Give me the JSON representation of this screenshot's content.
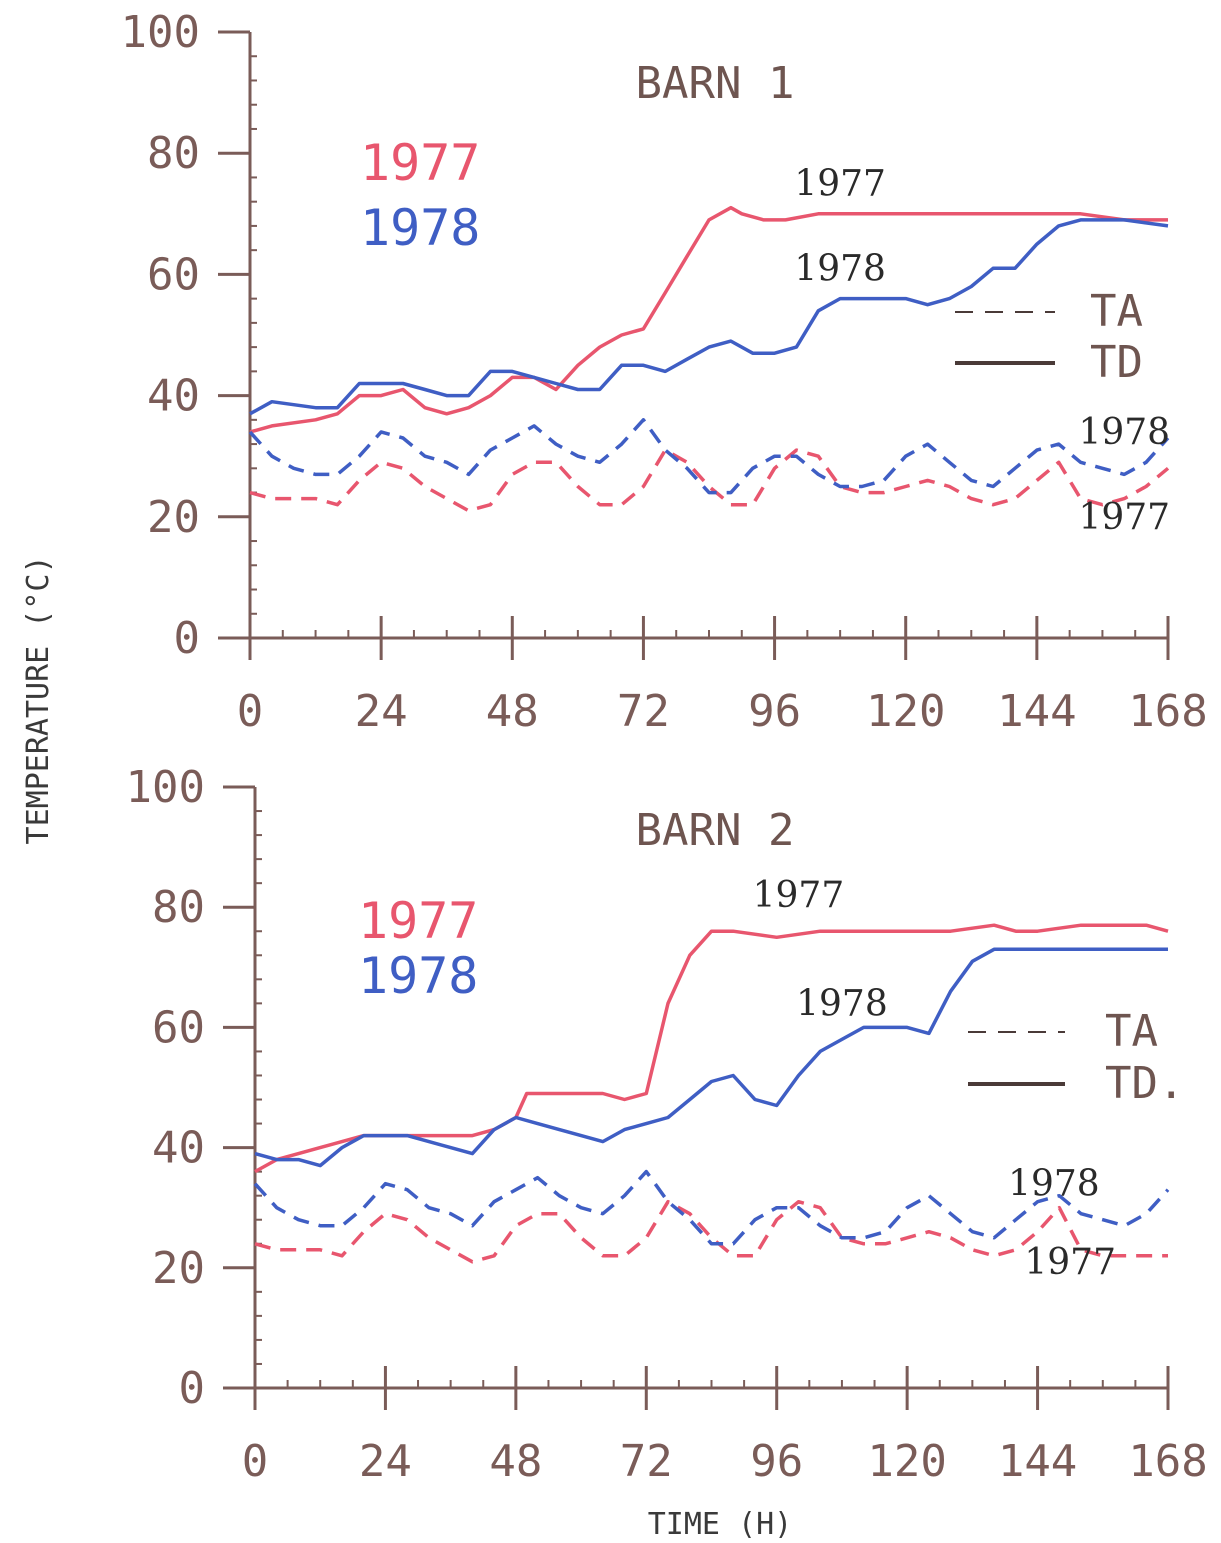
{
  "colors": {
    "axis": "#7a5c58",
    "y1977": "#e8566e",
    "y1978": "#3f5ec4",
    "text": "#6e5550"
  },
  "y_axis_label": "TEMPERATURE (°C)",
  "x_axis_label": "TIME (H)",
  "chart_data": [
    {
      "type": "line",
      "title": "BARN 1",
      "xlim": [
        0,
        168
      ],
      "ylim": [
        0,
        100
      ],
      "x_ticks": [
        0,
        24,
        48,
        72,
        96,
        120,
        144,
        168
      ],
      "y_ticks": [
        0,
        20,
        40,
        60,
        80,
        100
      ],
      "year_legend": [
        "1977",
        "1978"
      ],
      "style_legend": [
        {
          "label": "TA",
          "style": "dashed"
        },
        {
          "label": "TD",
          "style": "solid"
        }
      ],
      "annotations": [
        {
          "text": "1977",
          "x": 108,
          "y": 73
        },
        {
          "text": "1978",
          "x": 108,
          "y": 59
        },
        {
          "text": "1978",
          "x": 160,
          "y": 32
        },
        {
          "text": "1977",
          "x": 160,
          "y": 18
        }
      ],
      "series": [
        {
          "name": "TD 1977",
          "year": "1977",
          "style": "solid",
          "x": [
            0,
            4,
            12,
            16,
            20,
            24,
            28,
            32,
            36,
            40,
            44,
            48,
            52,
            56,
            60,
            64,
            68,
            72,
            76,
            80,
            84,
            88,
            90,
            94,
            98,
            104,
            112,
            120,
            128,
            136,
            144,
            152,
            160,
            168
          ],
          "y": [
            34,
            35,
            36,
            37,
            40,
            40,
            41,
            38,
            37,
            38,
            40,
            43,
            43,
            41,
            45,
            48,
            50,
            51,
            57,
            63,
            69,
            71,
            70,
            69,
            69,
            70,
            70,
            70,
            70,
            70,
            70,
            70,
            69,
            69
          ]
        },
        {
          "name": "TD 1978",
          "year": "1978",
          "style": "solid",
          "x": [
            0,
            4,
            12,
            16,
            20,
            24,
            28,
            32,
            36,
            40,
            44,
            48,
            52,
            56,
            60,
            64,
            68,
            72,
            76,
            80,
            84,
            88,
            92,
            96,
            100,
            104,
            108,
            112,
            116,
            120,
            124,
            128,
            132,
            136,
            140,
            144,
            148,
            152,
            160,
            168
          ],
          "y": [
            37,
            39,
            38,
            38,
            42,
            42,
            42,
            41,
            40,
            40,
            44,
            44,
            43,
            42,
            41,
            41,
            45,
            45,
            44,
            46,
            48,
            49,
            47,
            47,
            48,
            54,
            56,
            56,
            56,
            56,
            55,
            56,
            58,
            61,
            61,
            65,
            68,
            69,
            69,
            68
          ]
        },
        {
          "name": "TA 1977",
          "year": "1977",
          "style": "dashed",
          "x": [
            0,
            4,
            12,
            16,
            20,
            24,
            28,
            32,
            36,
            40,
            44,
            48,
            52,
            56,
            60,
            64,
            68,
            72,
            76,
            80,
            84,
            88,
            92,
            96,
            100,
            104,
            108,
            112,
            116,
            120,
            124,
            128,
            132,
            136,
            140,
            144,
            148,
            152,
            156,
            160,
            164,
            168
          ],
          "y": [
            24,
            23,
            23,
            22,
            26,
            29,
            28,
            25,
            23,
            21,
            22,
            27,
            29,
            29,
            25,
            22,
            22,
            25,
            31,
            29,
            25,
            22,
            22,
            28,
            31,
            30,
            25,
            24,
            24,
            25,
            26,
            25,
            23,
            22,
            23,
            26,
            29,
            23,
            22,
            23,
            25,
            28
          ]
        },
        {
          "name": "TA 1978",
          "year": "1978",
          "style": "dashed",
          "x": [
            0,
            4,
            8,
            12,
            16,
            20,
            24,
            28,
            32,
            36,
            40,
            44,
            48,
            52,
            56,
            60,
            64,
            68,
            72,
            76,
            80,
            84,
            88,
            92,
            96,
            100,
            104,
            108,
            112,
            116,
            120,
            124,
            128,
            132,
            136,
            140,
            144,
            148,
            152,
            156,
            160,
            164,
            168
          ],
          "y": [
            34,
            30,
            28,
            27,
            27,
            30,
            34,
            33,
            30,
            29,
            27,
            31,
            33,
            35,
            32,
            30,
            29,
            32,
            36,
            31,
            28,
            24,
            24,
            28,
            30,
            30,
            27,
            25,
            25,
            26,
            30,
            32,
            29,
            26,
            25,
            28,
            31,
            32,
            29,
            28,
            27,
            29,
            33
          ]
        }
      ]
    },
    {
      "type": "line",
      "title": "BARN 2",
      "xlim": [
        0,
        168
      ],
      "ylim": [
        0,
        100
      ],
      "x_ticks": [
        0,
        24,
        48,
        72,
        96,
        120,
        144,
        168
      ],
      "y_ticks": [
        0,
        20,
        40,
        60,
        80,
        100
      ],
      "year_legend": [
        "1977",
        "1978"
      ],
      "style_legend": [
        {
          "label": "TA",
          "style": "dashed"
        },
        {
          "label": "TD.",
          "style": "solid"
        }
      ],
      "annotations": [
        {
          "text": "1977",
          "x": 100,
          "y": 80
        },
        {
          "text": "1978",
          "x": 108,
          "y": 62
        },
        {
          "text": "1978",
          "x": 147,
          "y": 32
        },
        {
          "text": "1977",
          "x": 150,
          "y": 19
        }
      ],
      "series": [
        {
          "name": "TD 1977",
          "year": "1977",
          "style": "solid",
          "x": [
            0,
            4,
            8,
            12,
            16,
            20,
            24,
            32,
            40,
            44,
            48,
            50,
            56,
            60,
            64,
            68,
            72,
            76,
            80,
            84,
            88,
            96,
            104,
            112,
            120,
            128,
            136,
            140,
            144,
            152,
            160,
            164,
            168
          ],
          "y": [
            36,
            38,
            39,
            40,
            41,
            42,
            42,
            42,
            42,
            43,
            45,
            49,
            49,
            49,
            49,
            48,
            49,
            64,
            72,
            76,
            76,
            75,
            76,
            76,
            76,
            76,
            77,
            76,
            76,
            77,
            77,
            77,
            76
          ]
        },
        {
          "name": "TD 1978",
          "year": "1978",
          "style": "solid",
          "x": [
            0,
            4,
            8,
            12,
            16,
            20,
            24,
            28,
            32,
            36,
            40,
            44,
            48,
            52,
            56,
            60,
            64,
            68,
            72,
            76,
            80,
            84,
            88,
            92,
            96,
            100,
            104,
            108,
            112,
            116,
            120,
            124,
            128,
            132,
            136,
            144,
            152,
            160,
            168
          ],
          "y": [
            39,
            38,
            38,
            37,
            40,
            42,
            42,
            42,
            41,
            40,
            39,
            43,
            45,
            44,
            43,
            42,
            41,
            43,
            44,
            45,
            48,
            51,
            52,
            48,
            47,
            52,
            56,
            58,
            60,
            60,
            60,
            59,
            66,
            71,
            73,
            73,
            73,
            73,
            73
          ]
        },
        {
          "name": "TA 1977",
          "year": "1977",
          "style": "dashed",
          "x": [
            0,
            4,
            12,
            16,
            20,
            24,
            28,
            32,
            36,
            40,
            44,
            48,
            52,
            56,
            60,
            64,
            68,
            72,
            76,
            80,
            84,
            88,
            92,
            96,
            100,
            104,
            108,
            112,
            116,
            120,
            124,
            128,
            132,
            136,
            140,
            144,
            148,
            152,
            156,
            160,
            164,
            168
          ],
          "y": [
            24,
            23,
            23,
            22,
            26,
            29,
            28,
            25,
            23,
            21,
            22,
            27,
            29,
            29,
            25,
            22,
            22,
            25,
            31,
            29,
            25,
            22,
            22,
            28,
            31,
            30,
            25,
            24,
            24,
            25,
            26,
            25,
            23,
            22,
            23,
            26,
            30,
            23,
            22,
            22,
            22,
            22
          ]
        },
        {
          "name": "TA 1978",
          "year": "1978",
          "style": "dashed",
          "x": [
            0,
            4,
            8,
            12,
            16,
            20,
            24,
            28,
            32,
            36,
            40,
            44,
            48,
            52,
            56,
            60,
            64,
            68,
            72,
            76,
            80,
            84,
            88,
            92,
            96,
            100,
            104,
            108,
            112,
            116,
            120,
            124,
            128,
            132,
            136,
            140,
            144,
            148,
            152,
            156,
            160,
            164,
            168
          ],
          "y": [
            34,
            30,
            28,
            27,
            27,
            30,
            34,
            33,
            30,
            29,
            27,
            31,
            33,
            35,
            32,
            30,
            29,
            32,
            36,
            31,
            28,
            24,
            24,
            28,
            30,
            30,
            27,
            25,
            25,
            26,
            30,
            32,
            29,
            26,
            25,
            28,
            31,
            32,
            29,
            28,
            27,
            29,
            33
          ]
        }
      ]
    }
  ]
}
